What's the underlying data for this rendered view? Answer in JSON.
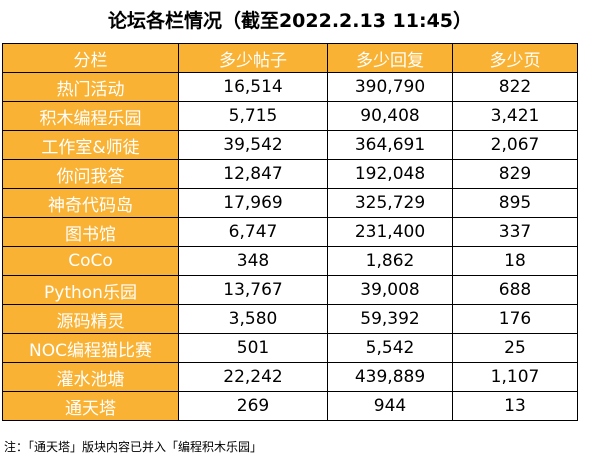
{
  "title": "论坛各栏情况（截至2022.2.13 11:45）",
  "table": {
    "header": [
      "分栏",
      "多少帖子",
      "多少回复",
      "多少页"
    ],
    "rows": [
      [
        "热门活动",
        "16,514",
        "390,790",
        "822"
      ],
      [
        "积木编程乐园",
        "5,715",
        "90,408",
        "3,421"
      ],
      [
        "工作室&师徒",
        "39,542",
        "364,691",
        "2,067"
      ],
      [
        "你问我答",
        "12,847",
        "192,048",
        "829"
      ],
      [
        "神奇代码岛",
        "17,969",
        "325,729",
        "895"
      ],
      [
        "图书馆",
        "6,747",
        "231,400",
        "337"
      ],
      [
        "CoCo",
        "348",
        "1,862",
        "18"
      ],
      [
        "Python乐园",
        "13,767",
        "39,008",
        "688"
      ],
      [
        "源码精灵",
        "3,580",
        "59,392",
        "176"
      ],
      [
        "NOC编程猫比赛",
        "501",
        "5,542",
        "25"
      ],
      [
        "灌水池塘",
        "22,242",
        "439,889",
        "1,107"
      ],
      [
        "通天塔",
        "269",
        "944",
        "13"
      ]
    ]
  },
  "note": "注：「通天塔」版块内容已并入「编程积木乐园」"
}
